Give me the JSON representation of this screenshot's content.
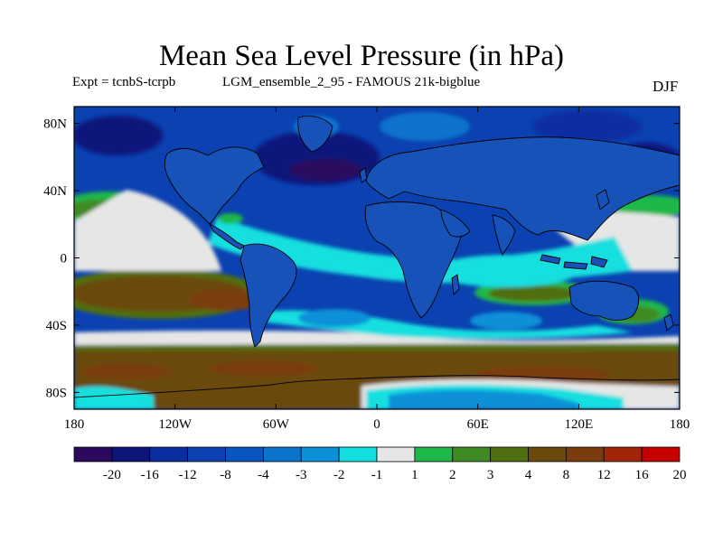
{
  "title": "Mean Sea Level Pressure (in hPa)",
  "expt_label": "Expt = tcnbS-tcrpb",
  "run_label": "LGM_ensemble_2_95 - FAMOUS 21k-bigblue",
  "season": "DJF",
  "lat_ticks": [
    {
      "label": "80N",
      "lat": 80
    },
    {
      "label": "40N",
      "lat": 40
    },
    {
      "label": "0",
      "lat": 0
    },
    {
      "label": "40S",
      "lat": -40
    },
    {
      "label": "80S",
      "lat": -80
    }
  ],
  "lon_ticks": [
    {
      "label": "180",
      "lon": -180
    },
    {
      "label": "120W",
      "lon": -120
    },
    {
      "label": "60W",
      "lon": -60
    },
    {
      "label": "0",
      "lon": 0
    },
    {
      "label": "60E",
      "lon": 60
    },
    {
      "label": "120E",
      "lon": 120
    },
    {
      "label": "180",
      "lon": 180
    }
  ],
  "colorbar": {
    "colors": [
      "#2b0a5e",
      "#0d147a",
      "#0a2ea0",
      "#0b41b0",
      "#0a55c0",
      "#0b73cc",
      "#0c90d8",
      "#13dfe0",
      "#e6e6e6",
      "#1fb84a",
      "#3f8a22",
      "#4f6e10",
      "#6b4a0e",
      "#7a3c0c",
      "#a02606",
      "#c60000"
    ],
    "labels": [
      "-20",
      "-16",
      "-12",
      "-8",
      "-4",
      "-3",
      "-2",
      "-1",
      "1",
      "2",
      "3",
      "4",
      "8",
      "12",
      "16",
      "20"
    ]
  },
  "map_colors": {
    "ocean_base": "#0b41b0",
    "land": "#1752b8",
    "coast": "#000000"
  }
}
